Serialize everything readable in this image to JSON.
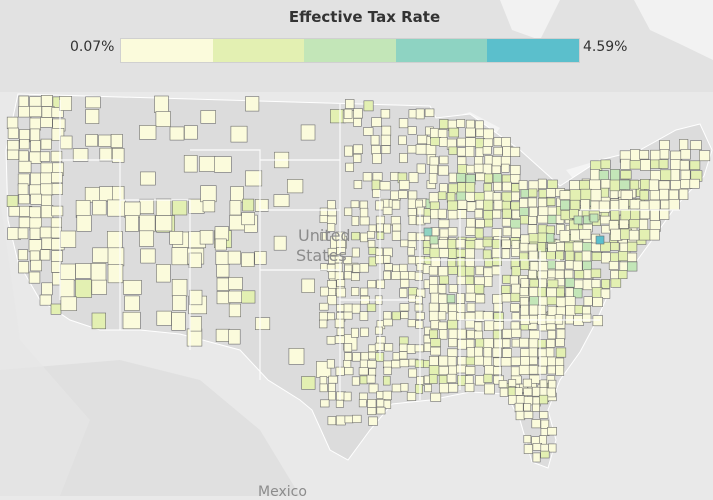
{
  "legend": {
    "title": "Effective Tax Rate",
    "min_label": "0.07%",
    "max_label": "4.59%",
    "min_value": 0.07,
    "max_value": 4.59,
    "colors": [
      "#fbfbdc",
      "#e3f0b2",
      "#c3e6b8",
      "#8ed3c2",
      "#5bbfcc"
    ]
  },
  "map_labels": {
    "country_line1": "United",
    "country_line2": "States",
    "mexico": "Mexico"
  },
  "colors": {
    "background": "#e9e9e9",
    "land": "#dcdcdc",
    "water": "#f4f4f4",
    "border": "#ffffff",
    "county_outline": "#6f6f6f",
    "county_fill_low": "#fbfbdc"
  }
}
